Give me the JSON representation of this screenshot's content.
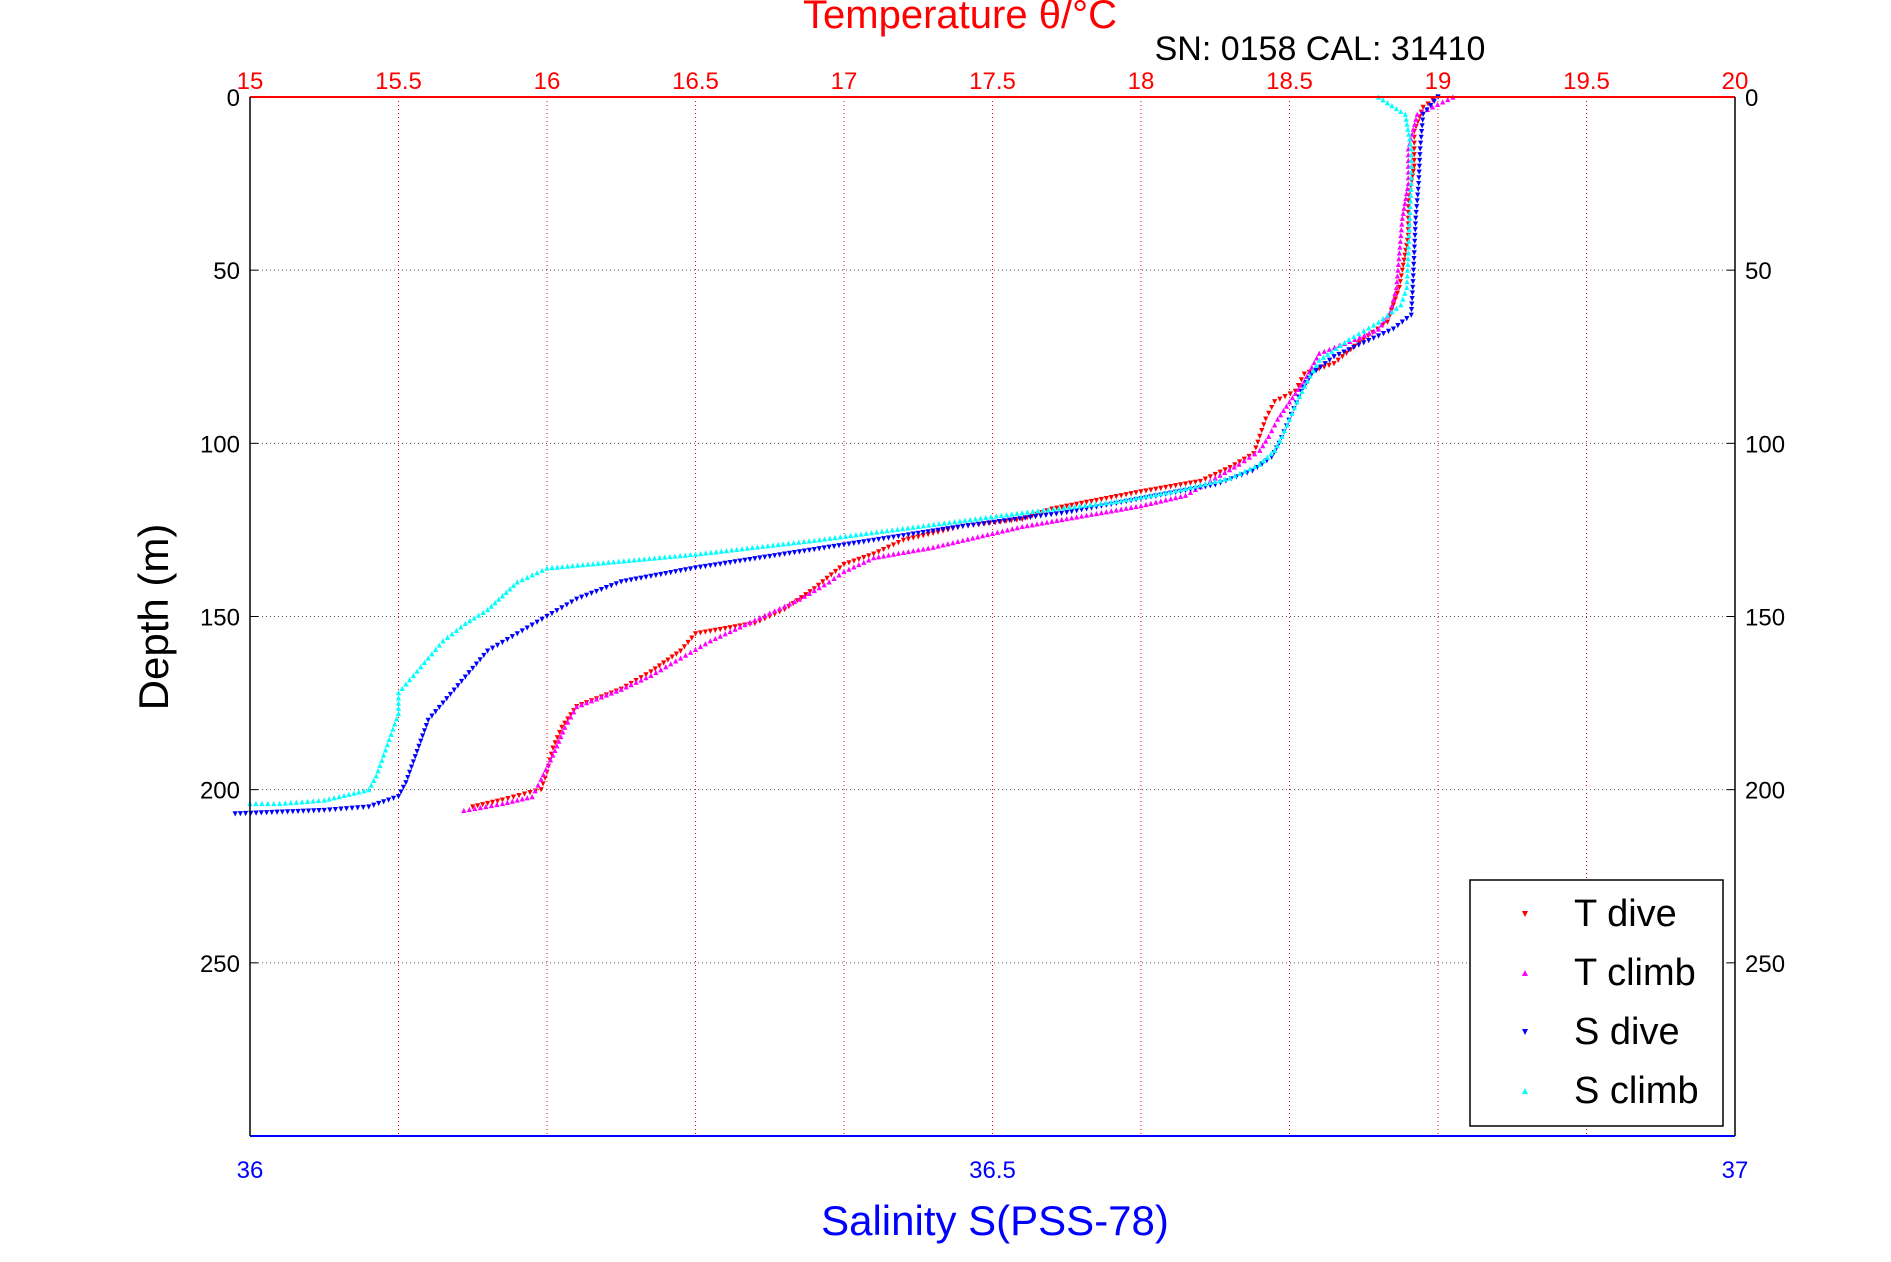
{
  "chart_data": {
    "type": "scatter",
    "title": "Temperature θ/°C",
    "subtitle": "SN: 0158  CAL: 31410",
    "xlabel": "Salinity S(PSS-78)",
    "ylabel": "Depth (m)",
    "top_axis": {
      "range": [
        15,
        20
      ],
      "ticks": [
        "15",
        "15.5",
        "16",
        "16.5",
        "17",
        "17.5",
        "18",
        "18.5",
        "19",
        "19.5",
        "20"
      ]
    },
    "bottom_axis": {
      "range": [
        36,
        37
      ],
      "ticks": [
        "36",
        "36.5",
        "37"
      ]
    },
    "y_axis": {
      "range": [
        0,
        300
      ],
      "inverted": true,
      "ticks": [
        "0",
        "50",
        "100",
        "150",
        "200",
        "250"
      ]
    },
    "grid": true,
    "legend": {
      "position": "bottom-right",
      "entries": [
        "T dive",
        "T climb",
        "S dive",
        "S climb"
      ]
    },
    "colors": {
      "temperature_axis": "#ff0000",
      "salinity_axis": "#0000ff",
      "grid_top": "#ff0000",
      "grid_horizontal": "#555555"
    },
    "series": [
      {
        "name": "T dive",
        "axis": "temperature",
        "color": "#ff0000",
        "marker": "triangle-down",
        "points": [
          [
            19.0,
            0
          ],
          [
            18.95,
            3
          ],
          [
            18.92,
            10
          ],
          [
            18.92,
            20
          ],
          [
            18.9,
            30
          ],
          [
            18.9,
            40
          ],
          [
            18.88,
            50
          ],
          [
            18.87,
            55
          ],
          [
            18.85,
            60
          ],
          [
            18.83,
            65
          ],
          [
            18.78,
            68
          ],
          [
            18.72,
            72
          ],
          [
            18.65,
            77
          ],
          [
            18.55,
            80
          ],
          [
            18.52,
            85
          ],
          [
            18.45,
            88
          ],
          [
            18.42,
            93
          ],
          [
            18.4,
            98
          ],
          [
            18.38,
            103
          ],
          [
            18.3,
            107
          ],
          [
            18.2,
            111
          ],
          [
            18.0,
            114
          ],
          [
            17.7,
            119
          ],
          [
            17.6,
            122
          ],
          [
            17.4,
            124
          ],
          [
            17.2,
            128
          ],
          [
            17.1,
            132
          ],
          [
            17.0,
            135
          ],
          [
            16.9,
            142
          ],
          [
            16.8,
            148
          ],
          [
            16.7,
            152
          ],
          [
            16.5,
            155
          ],
          [
            16.45,
            160
          ],
          [
            16.35,
            166
          ],
          [
            16.25,
            171
          ],
          [
            16.1,
            176
          ],
          [
            16.05,
            182
          ],
          [
            16.02,
            188
          ],
          [
            16.0,
            195
          ],
          [
            15.98,
            200
          ],
          [
            15.85,
            203
          ],
          [
            15.75,
            205
          ]
        ]
      },
      {
        "name": "T climb",
        "axis": "temperature",
        "color": "#ff00ff",
        "marker": "triangle-up",
        "points": [
          [
            19.05,
            0
          ],
          [
            18.93,
            5
          ],
          [
            18.9,
            15
          ],
          [
            18.9,
            25
          ],
          [
            18.88,
            35
          ],
          [
            18.87,
            45
          ],
          [
            18.86,
            55
          ],
          [
            18.84,
            62
          ],
          [
            18.8,
            67
          ],
          [
            18.72,
            70
          ],
          [
            18.6,
            74
          ],
          [
            18.55,
            82
          ],
          [
            18.5,
            88
          ],
          [
            18.46,
            93
          ],
          [
            18.43,
            98
          ],
          [
            18.4,
            102
          ],
          [
            18.33,
            106
          ],
          [
            18.25,
            110
          ],
          [
            18.15,
            115
          ],
          [
            18.0,
            118
          ],
          [
            17.8,
            121
          ],
          [
            17.6,
            124
          ],
          [
            17.45,
            127
          ],
          [
            17.3,
            130
          ],
          [
            17.1,
            133
          ],
          [
            17.0,
            137
          ],
          [
            16.95,
            140
          ],
          [
            16.85,
            145
          ],
          [
            16.75,
            149
          ],
          [
            16.65,
            153
          ],
          [
            16.55,
            157
          ],
          [
            16.45,
            162
          ],
          [
            16.35,
            167
          ],
          [
            16.25,
            171
          ],
          [
            16.1,
            176
          ],
          [
            16.06,
            182
          ],
          [
            16.02,
            190
          ],
          [
            15.98,
            197
          ],
          [
            15.95,
            202
          ],
          [
            15.85,
            204
          ],
          [
            15.72,
            206
          ]
        ]
      },
      {
        "name": "S dive",
        "axis": "salinity",
        "color": "#0000ff",
        "marker": "triangle-down",
        "points": [
          [
            36.8,
            0
          ],
          [
            36.79,
            5
          ],
          [
            36.788,
            15
          ],
          [
            36.787,
            25
          ],
          [
            36.785,
            35
          ],
          [
            36.784,
            45
          ],
          [
            36.783,
            55
          ],
          [
            36.782,
            63
          ],
          [
            36.77,
            67
          ],
          [
            36.75,
            71
          ],
          [
            36.73,
            75
          ],
          [
            36.715,
            80
          ],
          [
            36.708,
            85
          ],
          [
            36.703,
            90
          ],
          [
            36.698,
            95
          ],
          [
            36.693,
            100
          ],
          [
            36.688,
            104
          ],
          [
            36.675,
            108
          ],
          [
            36.65,
            112
          ],
          [
            36.6,
            116
          ],
          [
            36.55,
            120
          ],
          [
            36.48,
            124
          ],
          [
            36.42,
            128
          ],
          [
            36.36,
            132
          ],
          [
            36.3,
            136
          ],
          [
            36.25,
            140
          ],
          [
            36.22,
            145
          ],
          [
            36.2,
            150
          ],
          [
            36.18,
            155
          ],
          [
            36.16,
            160
          ],
          [
            36.15,
            165
          ],
          [
            36.14,
            170
          ],
          [
            36.13,
            175
          ],
          [
            36.12,
            180
          ],
          [
            36.115,
            186
          ],
          [
            36.11,
            192
          ],
          [
            36.105,
            198
          ],
          [
            36.1,
            202
          ],
          [
            36.08,
            205
          ],
          [
            36.05,
            206
          ],
          [
            35.99,
            207
          ]
        ]
      },
      {
        "name": "S climb",
        "axis": "salinity",
        "color": "#00ffff",
        "marker": "triangle-up",
        "points": [
          [
            36.76,
            0
          ],
          [
            36.778,
            5
          ],
          [
            36.782,
            15
          ],
          [
            36.782,
            25
          ],
          [
            36.781,
            35
          ],
          [
            36.78,
            45
          ],
          [
            36.779,
            55
          ],
          [
            36.775,
            60
          ],
          [
            36.76,
            65
          ],
          [
            36.74,
            70
          ],
          [
            36.72,
            76
          ],
          [
            36.712,
            82
          ],
          [
            36.705,
            88
          ],
          [
            36.7,
            93
          ],
          [
            36.695,
            98
          ],
          [
            36.69,
            102
          ],
          [
            36.68,
            106
          ],
          [
            36.66,
            110
          ],
          [
            36.62,
            114
          ],
          [
            36.58,
            117
          ],
          [
            36.52,
            120
          ],
          [
            36.45,
            124
          ],
          [
            36.38,
            128
          ],
          [
            36.3,
            132
          ],
          [
            36.2,
            136
          ],
          [
            36.18,
            140
          ],
          [
            36.17,
            144
          ],
          [
            36.16,
            148
          ],
          [
            36.145,
            152
          ],
          [
            36.13,
            157
          ],
          [
            36.12,
            162
          ],
          [
            36.11,
            167
          ],
          [
            36.1,
            172
          ],
          [
            36.1,
            178
          ],
          [
            36.095,
            184
          ],
          [
            36.09,
            190
          ],
          [
            36.085,
            196
          ],
          [
            36.08,
            200
          ],
          [
            36.05,
            203
          ],
          [
            36.02,
            204
          ],
          [
            36.0,
            204
          ]
        ]
      }
    ]
  }
}
